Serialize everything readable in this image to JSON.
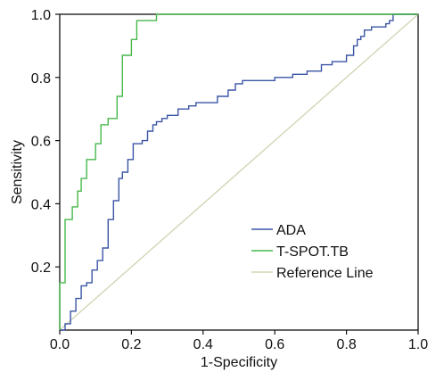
{
  "chart_data": {
    "type": "line",
    "title": "",
    "xlabel": "1-Specificity",
    "ylabel": "Sensitivity",
    "xlim": [
      0,
      1
    ],
    "ylim": [
      0,
      1
    ],
    "xticks": [
      "0.0",
      "0.2",
      "0.4",
      "0.6",
      "0.8",
      "1.0"
    ],
    "yticks": [
      "0.2",
      "0.4",
      "0.6",
      "0.8",
      "1.0"
    ],
    "grid": false,
    "legend_position": "bottom-right",
    "series": [
      {
        "name": "ADA",
        "color": "#3a55a5",
        "x": [
          0,
          0.015,
          0.015,
          0.03,
          0.03,
          0.045,
          0.045,
          0.06,
          0.06,
          0.075,
          0.075,
          0.09,
          0.09,
          0.105,
          0.105,
          0.12,
          0.12,
          0.135,
          0.135,
          0.15,
          0.15,
          0.165,
          0.165,
          0.175,
          0.175,
          0.19,
          0.19,
          0.205,
          0.205,
          0.23,
          0.23,
          0.245,
          0.245,
          0.26,
          0.26,
          0.27,
          0.27,
          0.285,
          0.285,
          0.3,
          0.3,
          0.33,
          0.33,
          0.36,
          0.36,
          0.38,
          0.38,
          0.41,
          0.41,
          0.44,
          0.44,
          0.47,
          0.47,
          0.49,
          0.49,
          0.51,
          0.51,
          0.6,
          0.6,
          0.65,
          0.65,
          0.69,
          0.69,
          0.73,
          0.73,
          0.76,
          0.76,
          0.8,
          0.8,
          0.82,
          0.82,
          0.83,
          0.83,
          0.84,
          0.84,
          0.85,
          0.85,
          0.87,
          0.87,
          0.91,
          0.91,
          0.92,
          0.92,
          0.93,
          0.93,
          1.0
        ],
        "y": [
          0,
          0,
          0.02,
          0.02,
          0.06,
          0.06,
          0.1,
          0.1,
          0.14,
          0.14,
          0.15,
          0.15,
          0.19,
          0.19,
          0.22,
          0.22,
          0.26,
          0.26,
          0.35,
          0.35,
          0.41,
          0.41,
          0.48,
          0.48,
          0.5,
          0.5,
          0.54,
          0.54,
          0.59,
          0.59,
          0.6,
          0.6,
          0.63,
          0.63,
          0.65,
          0.65,
          0.66,
          0.66,
          0.67,
          0.67,
          0.68,
          0.68,
          0.7,
          0.7,
          0.71,
          0.71,
          0.72,
          0.72,
          0.72,
          0.72,
          0.74,
          0.74,
          0.76,
          0.76,
          0.78,
          0.78,
          0.79,
          0.79,
          0.8,
          0.8,
          0.81,
          0.81,
          0.82,
          0.82,
          0.84,
          0.84,
          0.85,
          0.85,
          0.87,
          0.87,
          0.9,
          0.9,
          0.92,
          0.92,
          0.93,
          0.93,
          0.95,
          0.95,
          0.96,
          0.96,
          0.97,
          0.97,
          0.98,
          0.98,
          1.0,
          1.0
        ]
      },
      {
        "name": "T-SPOT.TB",
        "color": "#47b84b",
        "x": [
          0,
          0,
          0.015,
          0.015,
          0.035,
          0.035,
          0.05,
          0.05,
          0.06,
          0.06,
          0.075,
          0.075,
          0.1,
          0.1,
          0.115,
          0.115,
          0.135,
          0.135,
          0.16,
          0.16,
          0.175,
          0.175,
          0.2,
          0.2,
          0.215,
          0.215,
          0.27,
          0.27,
          1.0
        ],
        "y": [
          0,
          0.15,
          0.15,
          0.35,
          0.35,
          0.39,
          0.39,
          0.44,
          0.44,
          0.48,
          0.48,
          0.54,
          0.54,
          0.59,
          0.59,
          0.65,
          0.65,
          0.67,
          0.67,
          0.74,
          0.74,
          0.87,
          0.87,
          0.92,
          0.92,
          0.98,
          0.98,
          1.0,
          1.0
        ]
      },
      {
        "name": "Reference Line",
        "color": "#d2d6b4",
        "x": [
          0,
          1
        ],
        "y": [
          0,
          1
        ]
      }
    ]
  }
}
